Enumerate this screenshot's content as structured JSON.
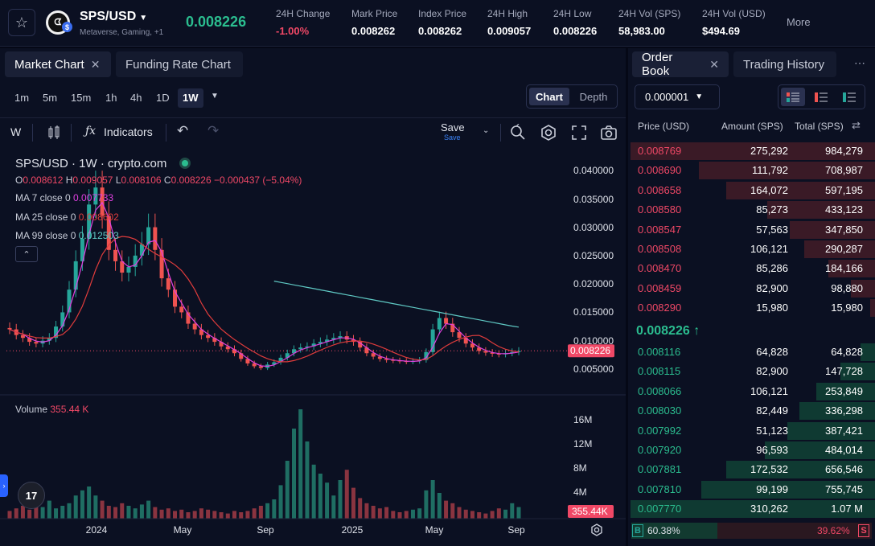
{
  "header": {
    "star_icon": "star-icon",
    "pair": "SPS/USD",
    "tags": "Metaverse, Gaming, +1",
    "last_price": "0.008226",
    "stats": [
      {
        "label": "24H Change",
        "value": "-1.00%",
        "color": "#f04866"
      },
      {
        "label": "Mark Price",
        "value": "0.008262",
        "color": "#ffffff"
      },
      {
        "label": "Index Price",
        "value": "0.008262",
        "color": "#ffffff"
      },
      {
        "label": "24H High",
        "value": "0.009057",
        "color": "#ffffff"
      },
      {
        "label": "24H Low",
        "value": "0.008226",
        "color": "#ffffff"
      },
      {
        "label": "24H Vol (SPS)",
        "value": "58,983.00",
        "color": "#ffffff"
      },
      {
        "label": "24H Vol (USD)",
        "value": "$494.69",
        "color": "#ffffff"
      }
    ],
    "more": "More"
  },
  "left_tabs": [
    {
      "label": "Market Chart"
    },
    {
      "label": "Funding Rate Chart"
    }
  ],
  "timeframes": [
    "1m",
    "5m",
    "15m",
    "1h",
    "4h",
    "1D",
    "1W"
  ],
  "active_timeframe": "1W",
  "view_toggle": {
    "on": "Chart",
    "off": "Depth"
  },
  "chart_toolbar": {
    "w": "W",
    "indicators": "Indicators",
    "save": "Save",
    "save_sub": "Save"
  },
  "legend": {
    "title": "SPS/USD · 1W · crypto.com",
    "o_label": "O",
    "o": "0.008612",
    "h_label": "H",
    "h": "0.009057",
    "l_label": "L",
    "l": "0.008106",
    "c_label": "C",
    "c": "0.008226",
    "chg": "−0.000437 (−5.04%)",
    "ma7_label": "MA 7 close 0",
    "ma7": "0.007733",
    "ma25_label": "MA 25 close 0",
    "ma25": "0.008602",
    "ma99_label": "MA 99 close 0",
    "ma99": "0.012503"
  },
  "price_axis": [
    "0.040000",
    "0.035000",
    "0.030000",
    "0.025000",
    "0.020000",
    "0.015000",
    "0.010000",
    "0.005000"
  ],
  "price_tag": "0.008226",
  "volume_label": "Volume",
  "volume_value": "355.44 K",
  "volume_axis": [
    "16M",
    "12M",
    "8M",
    "4M"
  ],
  "volume_tag": "355.44K",
  "time_axis": [
    "2024",
    "May",
    "Sep",
    "2025",
    "May",
    "Sep"
  ],
  "chart_data": {
    "type": "candlestick",
    "x_axis": [
      "2024",
      "May",
      "Sep",
      "2025",
      "May",
      "Sep"
    ],
    "y_axis": [
      "0.040000",
      "0.035000",
      "0.030000",
      "0.025000",
      "0.020000",
      "0.015000",
      "0.010000",
      "0.005000"
    ],
    "last_close": 0.008226,
    "ohlc_last": {
      "open": 0.008612,
      "high": 0.009057,
      "low": 0.008106,
      "close": 0.008226
    },
    "ma": [
      {
        "name": "MA 7",
        "value": 0.007733,
        "color": "#e040e0"
      },
      {
        "name": "MA 25",
        "value": 0.008602,
        "color": "#e03c3c"
      },
      {
        "name": "MA 99",
        "value": 0.012503,
        "color": "#5fc9c4"
      }
    ],
    "colors": {
      "up": "#26a69a",
      "down": "#ef5350"
    }
  },
  "right_tabs": [
    {
      "label": "Order Book"
    },
    {
      "label": "Trading History"
    }
  ],
  "precision": "0.000001",
  "order_book": {
    "col_price": "Price (USD)",
    "col_amount": "Amount (SPS)",
    "col_total": "Total (SPS)",
    "asks": [
      {
        "price": "0.008769",
        "amount": "275,292",
        "total": "984,279",
        "depth": 1.0
      },
      {
        "price": "0.008690",
        "amount": "111,792",
        "total": "708,987",
        "depth": 0.72
      },
      {
        "price": "0.008658",
        "amount": "164,072",
        "total": "597,195",
        "depth": 0.61
      },
      {
        "price": "0.008580",
        "amount": "85,273",
        "total": "433,123",
        "depth": 0.44
      },
      {
        "price": "0.008547",
        "amount": "57,563",
        "total": "347,850",
        "depth": 0.35
      },
      {
        "price": "0.008508",
        "amount": "106,121",
        "total": "290,287",
        "depth": 0.29
      },
      {
        "price": "0.008470",
        "amount": "85,286",
        "total": "184,166",
        "depth": 0.19
      },
      {
        "price": "0.008459",
        "amount": "82,900",
        "total": "98,880",
        "depth": 0.1
      },
      {
        "price": "0.008290",
        "amount": "15,980",
        "total": "15,980",
        "depth": 0.02
      }
    ],
    "mid_price": "0.008226",
    "bids": [
      {
        "price": "0.008116",
        "amount": "64,828",
        "total": "64,828",
        "depth": 0.06
      },
      {
        "price": "0.008115",
        "amount": "82,900",
        "total": "147,728",
        "depth": 0.14
      },
      {
        "price": "0.008066",
        "amount": "106,121",
        "total": "253,849",
        "depth": 0.24
      },
      {
        "price": "0.008030",
        "amount": "82,449",
        "total": "336,298",
        "depth": 0.31
      },
      {
        "price": "0.007992",
        "amount": "51,123",
        "total": "387,421",
        "depth": 0.36
      },
      {
        "price": "0.007920",
        "amount": "96,593",
        "total": "484,014",
        "depth": 0.45
      },
      {
        "price": "0.007881",
        "amount": "172,532",
        "total": "656,546",
        "depth": 0.61
      },
      {
        "price": "0.007810",
        "amount": "99,199",
        "total": "755,745",
        "depth": 0.71
      },
      {
        "price": "0.007770",
        "amount": "310,262",
        "total": "1.07 M",
        "depth": 1.0
      }
    ],
    "buy_label": "B",
    "buy_pct": "60.38%",
    "buy_ratio": 0.6038,
    "sell_label": "S",
    "sell_pct": "39.62%"
  }
}
